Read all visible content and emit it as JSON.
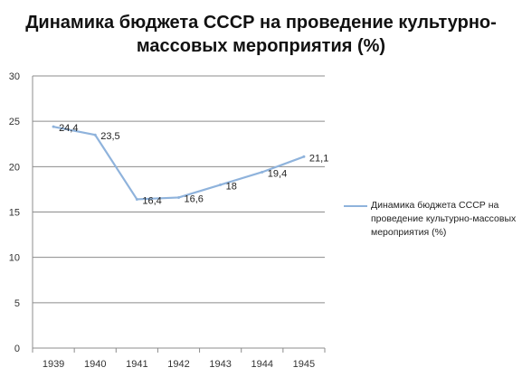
{
  "chart_data": {
    "type": "line",
    "title": "Динамика бюджета СССР на проведение культурно-массовых мероприятия (%)",
    "xlabel": "",
    "ylabel": "",
    "categories": [
      "1939",
      "1940",
      "1941",
      "1942",
      "1943",
      "1944",
      "1945"
    ],
    "series": [
      {
        "name": "Динамика бюджета СССР на проведение культурно-массовых мероприятия (%)",
        "values": [
          24.4,
          23.5,
          16.4,
          16.6,
          18,
          19.4,
          21.1
        ],
        "labels": [
          "24,4",
          "23,5",
          "16,4",
          "16,6",
          "18",
          "19,4",
          "21,1"
        ],
        "color": "#8fb3dc"
      }
    ],
    "ylim": [
      0,
      30
    ],
    "yticks": [
      "0",
      "5",
      "10",
      "15",
      "20",
      "25",
      "30"
    ],
    "grid": true,
    "legend": "right"
  }
}
